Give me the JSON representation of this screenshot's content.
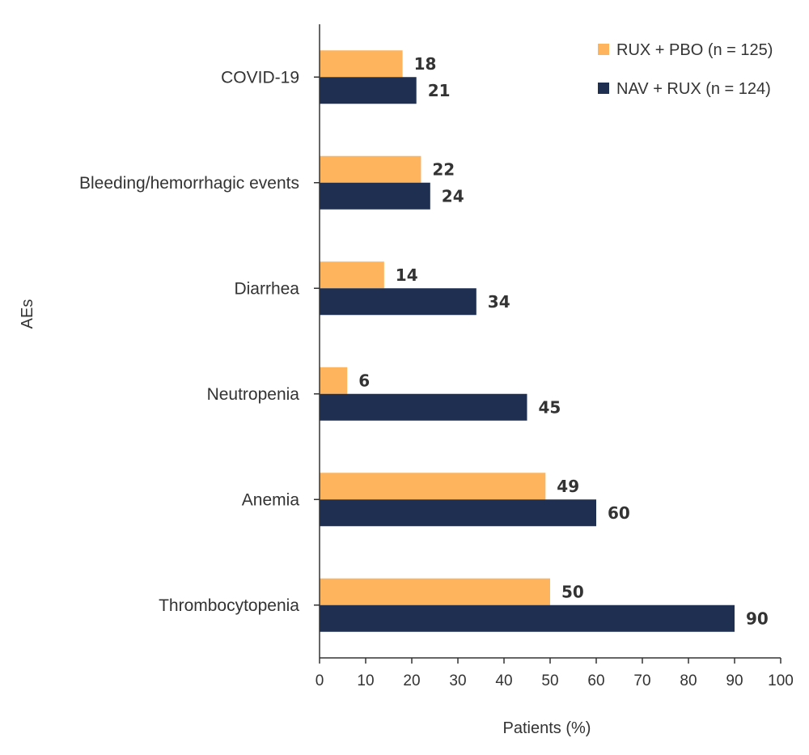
{
  "chart_data": {
    "type": "bar",
    "orientation": "horizontal",
    "title": "",
    "xlabel": "Patients (%)",
    "ylabel": "AEs",
    "xlim": [
      0,
      100
    ],
    "xticks": [
      0,
      10,
      20,
      30,
      40,
      50,
      60,
      70,
      80,
      90,
      100
    ],
    "grid": false,
    "legend_position": "top-right",
    "categories": [
      "COVID-19",
      "Bleeding/hemorrhagic events",
      "Diarrhea",
      "Neutropenia",
      "Anemia",
      "Thrombocytopenia"
    ],
    "series": [
      {
        "name": "RUX + PBO (n = 125)",
        "color": "#FDB45C",
        "values": [
          18,
          22,
          14,
          6,
          49,
          50
        ]
      },
      {
        "name": "NAV + RUX (n = 124)",
        "color": "#1F2F52",
        "values": [
          21,
          24,
          34,
          45,
          60,
          90
        ]
      }
    ]
  }
}
